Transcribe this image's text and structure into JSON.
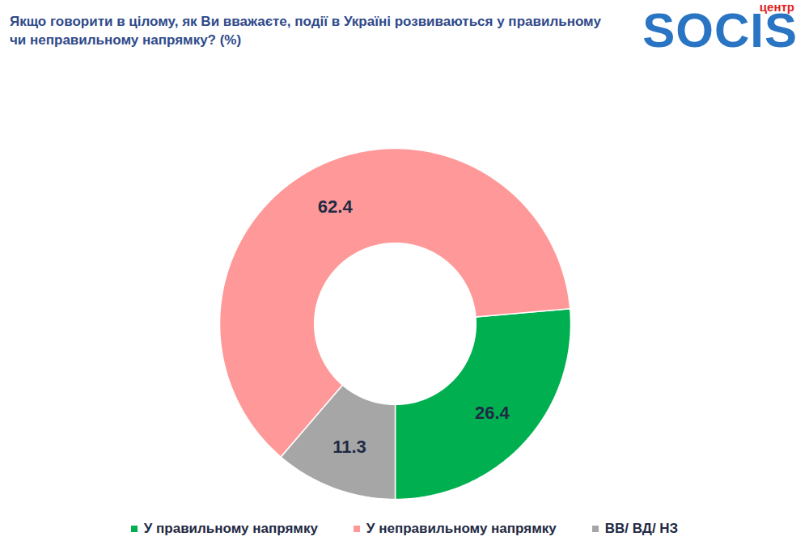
{
  "chart_data": {
    "type": "donut",
    "title": "Якщо говорити в цілому, як Ви вважаєте, події в Україні розвиваються у правильному чи неправильному напрямку? (%)",
    "logo": {
      "text": "SOCIS",
      "subtext": "центр"
    },
    "categories": [
      "У правильному напрямку",
      "У неправильному напрямку",
      "ВВ/ ВД/ НЗ"
    ],
    "values": [
      26.4,
      62.4,
      11.3
    ],
    "colors": [
      "#00b050",
      "#ff9999",
      "#a6a6a6"
    ],
    "data_labels": true,
    "legend": "bottom"
  }
}
